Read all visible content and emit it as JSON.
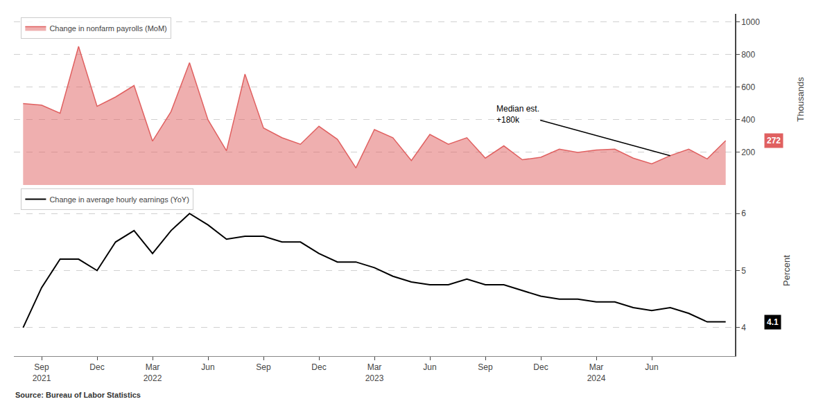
{
  "chart_data": [
    {
      "type": "area",
      "categories": [
        null,
        "Sep\n2021",
        null,
        null,
        "Dec",
        null,
        null,
        "Mar\n2022",
        null,
        null,
        "Jun",
        null,
        null,
        "Sep",
        null,
        null,
        "Dec",
        null,
        null,
        "Mar\n2023",
        null,
        null,
        "Jun",
        null,
        null,
        "Sep",
        null,
        null,
        "Dec",
        null,
        null,
        "Mar\n2024",
        null,
        null,
        "Jun",
        null,
        null,
        null,
        null
      ],
      "series": [
        {
          "name": "Change in nonfarm payrolls (MoM)",
          "color": "#e06060",
          "values": [
            500,
            490,
            440,
            850,
            483,
            540,
            610,
            269,
            450,
            750,
            400,
            210,
            680,
            350,
            290,
            250,
            360,
            280,
            105,
            340,
            290,
            150,
            310,
            250,
            290,
            165,
            240,
            155,
            170,
            220,
            200,
            215,
            220,
            165,
            130,
            180,
            220,
            160,
            272
          ]
        }
      ],
      "ylabel": "Thousands",
      "ylim": [
        0,
        1050
      ],
      "yticks": [
        200,
        400,
        600,
        800,
        1000
      ],
      "grid": true,
      "legend": "upper left",
      "tick_labels": "y",
      "annotations": [
        {
          "text": "Median est.\n+180k",
          "value": 180
        },
        {
          "text": "272",
          "value": 272
        }
      ]
    },
    {
      "type": "line",
      "categories": [
        null,
        "Sep\n2021",
        null,
        null,
        "Dec",
        null,
        null,
        "Mar\n2022",
        null,
        null,
        "Jun",
        null,
        null,
        "Sep",
        null,
        null,
        "Dec",
        null,
        null,
        "Mar\n2023",
        null,
        null,
        "Jun",
        null,
        null,
        "Sep",
        null,
        null,
        "Dec",
        null,
        null,
        "Mar\n2024",
        null,
        null,
        "Jun",
        null,
        null,
        null,
        null
      ],
      "series": [
        {
          "name": "Change in average hourly earnings (YoY)",
          "color": "#000000",
          "values": [
            4.0,
            4.7,
            5.2,
            5.2,
            5.0,
            5.5,
            5.7,
            5.3,
            5.7,
            6.0,
            5.8,
            5.55,
            5.6,
            5.6,
            5.5,
            5.5,
            5.3,
            5.15,
            5.15,
            5.05,
            4.9,
            4.8,
            4.75,
            4.75,
            4.85,
            4.75,
            4.75,
            4.65,
            4.55,
            4.5,
            4.5,
            4.45,
            4.45,
            4.35,
            4.3,
            4.35,
            4.25,
            4.1,
            4.1
          ]
        }
      ],
      "ylabel": "Percent",
      "ylim": [
        3.5,
        6.5
      ],
      "yticks": [
        4,
        5,
        6
      ],
      "grid": true,
      "legend": "upper left",
      "annotations": [
        {
          "text": "4.1",
          "value": 4.1
        },
        {
          "text": "Source: Bureau of Labor Statistics"
        }
      ]
    }
  ]
}
